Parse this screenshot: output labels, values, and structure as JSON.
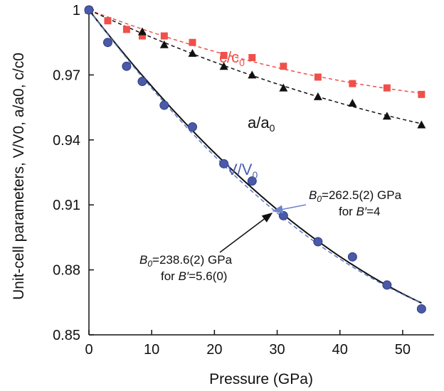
{
  "chart_data": {
    "type": "scatter",
    "xlabel": "Pressure (GPa)",
    "ylabel": "Unit-cell parameters, V/V0, a/a0, c/c0",
    "xlim": [
      0,
      55
    ],
    "ylim": [
      0.85,
      1.0
    ],
    "xticks": [
      "0",
      "10",
      "20",
      "30",
      "40",
      "50"
    ],
    "xtick_values": [
      0,
      10,
      20,
      30,
      40,
      50
    ],
    "yticks": [
      "0.85",
      "0.88",
      "0.91",
      "0.94",
      "0.97",
      "1"
    ],
    "ytick_values": [
      0.85,
      0.88,
      0.91,
      0.94,
      0.97,
      1.0
    ],
    "grid": false,
    "series": [
      {
        "name": "c/c0",
        "label_main": "c/c",
        "label_sub": "0",
        "marker": "square",
        "color": "#f0504a",
        "fit": "dashed",
        "x": [
          0,
          3,
          6,
          8.5,
          12,
          16.5,
          21.5,
          26,
          31,
          36.5,
          42,
          47.5,
          53
        ],
        "y": [
          1.0,
          0.995,
          0.991,
          0.988,
          0.988,
          0.985,
          0.979,
          0.978,
          0.974,
          0.969,
          0.966,
          0.964,
          0.961
        ]
      },
      {
        "name": "a/a0",
        "label_main": "a/a",
        "label_sub": "0",
        "marker": "triangle",
        "color": "#111111",
        "fit": "dashed",
        "x": [
          0,
          8.5,
          12,
          16.5,
          21.5,
          26,
          31,
          36.5,
          42,
          47.5,
          53
        ],
        "y": [
          1.0,
          0.99,
          0.984,
          0.98,
          0.974,
          0.97,
          0.964,
          0.96,
          0.957,
          0.951,
          0.947
        ]
      },
      {
        "name": "V/V0",
        "label_main": "V/V",
        "label_sub": "0",
        "marker": "circle",
        "color": "#3d4f9f",
        "fit": "solid+dashed",
        "x": [
          0,
          3,
          6,
          8.5,
          12,
          16.5,
          21.5,
          26,
          31,
          36.5,
          42,
          47.5,
          53
        ],
        "y": [
          1.0,
          0.985,
          0.974,
          0.967,
          0.956,
          0.946,
          0.929,
          0.921,
          0.905,
          0.893,
          0.886,
          0.873,
          0.862
        ]
      }
    ],
    "annotations": [
      {
        "id": "b4",
        "line1_sym": "B",
        "line1_sub": "0",
        "line1_rest": "=262.5(2) GPa",
        "line2_pre": "for ",
        "line2_sym": "B′",
        "line2_rest": "=4"
      },
      {
        "id": "b56",
        "line1_sym": "B",
        "line1_sub": "0",
        "line1_rest": "=238.6(2) GPa",
        "line2_pre": "for ",
        "line2_sym": "B′",
        "line2_rest": "=5.6(0)"
      }
    ],
    "colors": {
      "axis": "#111111",
      "fit_solid": "#111111",
      "fit_dashed_v": "#5a78c8",
      "arrow_blue": "#6d83c9",
      "arrow_black": "#111111"
    }
  }
}
